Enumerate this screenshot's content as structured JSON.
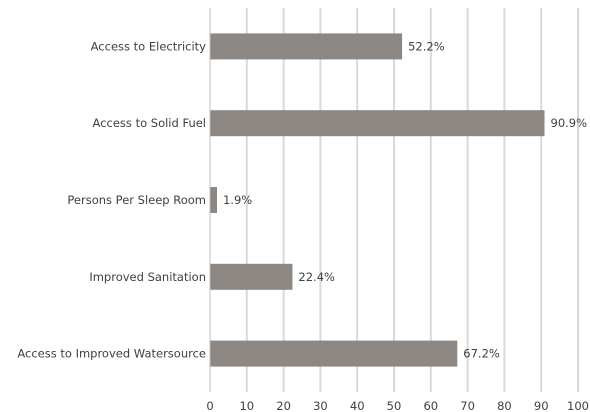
{
  "chart_data": {
    "type": "bar",
    "orientation": "horizontal",
    "categories": [
      "Access to Electricity",
      "Access to Solid Fuel",
      "Persons Per Sleep Room",
      "Improved Sanitation",
      "Access to Improved Watersource"
    ],
    "values": [
      52.2,
      90.9,
      1.9,
      22.4,
      67.2
    ],
    "data_labels": [
      "52.2%",
      "90.9%",
      "1.9%",
      "22.4%",
      "67.2%"
    ],
    "x_ticks": [
      "0",
      "10",
      "20",
      "30",
      "40",
      "50",
      "60",
      "70",
      "80",
      "90",
      "100"
    ],
    "xlim": [
      0,
      100
    ],
    "grid": true,
    "bar_color": "#8c8782",
    "title": "",
    "xlabel": "",
    "ylabel": ""
  }
}
